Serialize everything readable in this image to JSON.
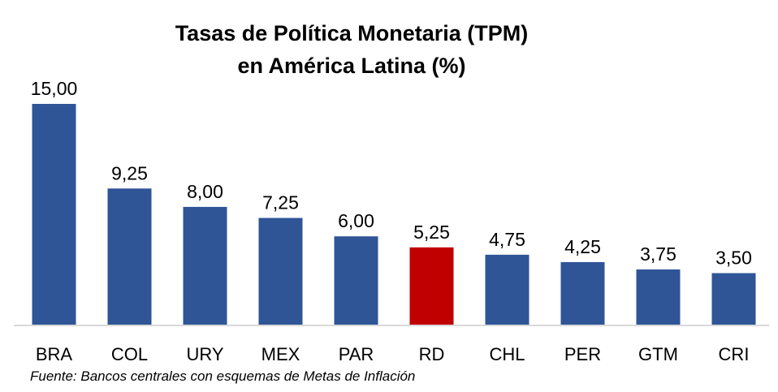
{
  "chart_data": {
    "type": "bar",
    "title_line1": "Tasas de Política Monetaria (TPM)",
    "title_line2": "en América Latina (%)",
    "categories": [
      "BRA",
      "COL",
      "URY",
      "MEX",
      "PAR",
      "RD",
      "CHL",
      "PER",
      "GTM",
      "CRI"
    ],
    "values": [
      15.0,
      9.25,
      8.0,
      7.25,
      6.0,
      5.25,
      4.75,
      4.25,
      3.75,
      3.5
    ],
    "value_labels": [
      "15,00",
      "9,25",
      "8,00",
      "7,25",
      "6,00",
      "5,25",
      "4,75",
      "4,25",
      "3,75",
      "3,50"
    ],
    "highlight_category": "RD",
    "colors": {
      "default": "#2f5597",
      "highlight": "#c00000",
      "axis": "#d9d9d9"
    },
    "xlabel": "",
    "ylabel": "",
    "ylim": [
      0,
      15
    ],
    "grid": false,
    "legend": "none"
  },
  "source_note": "Fuente: Bancos centrales con esquemas de Metas de Inflación"
}
